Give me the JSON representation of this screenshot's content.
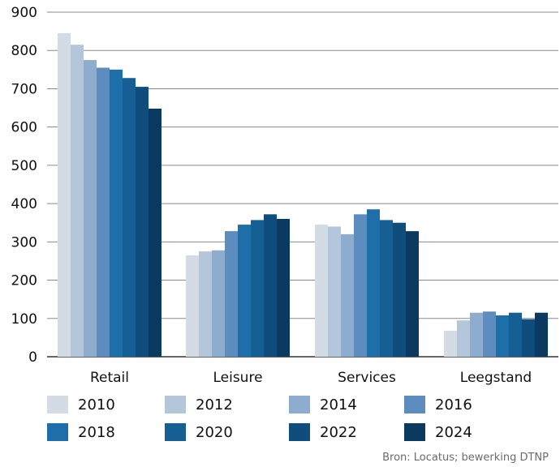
{
  "chart_data": {
    "type": "bar",
    "categories": [
      "Retail",
      "Leisure",
      "Services",
      "Leegstand"
    ],
    "series": [
      {
        "name": "2010",
        "color": "#d3dbe4",
        "values": [
          845,
          265,
          345,
          68
        ]
      },
      {
        "name": "2012",
        "color": "#b4c6d9",
        "values": [
          815,
          275,
          340,
          95
        ]
      },
      {
        "name": "2014",
        "color": "#8eaccd",
        "values": [
          775,
          278,
          320,
          115
        ]
      },
      {
        "name": "2016",
        "color": "#5d8dbf",
        "values": [
          755,
          328,
          372,
          118
        ]
      },
      {
        "name": "2018",
        "color": "#1d6ea9",
        "values": [
          750,
          345,
          385,
          108
        ]
      },
      {
        "name": "2020",
        "color": "#155f95",
        "values": [
          728,
          357,
          357,
          115
        ]
      },
      {
        "name": "2022",
        "color": "#0e4d7c",
        "values": [
          705,
          372,
          350,
          98
        ]
      },
      {
        "name": "2024",
        "color": "#0b3a60",
        "values": [
          648,
          360,
          328,
          115
        ]
      }
    ],
    "ylim": [
      0,
      900
    ],
    "yticks": [
      0,
      100,
      200,
      300,
      400,
      500,
      600,
      700,
      800,
      900
    ],
    "grid": true,
    "legend_position": "bottom"
  },
  "source": "Bron: Locatus; bewerking DTNP"
}
